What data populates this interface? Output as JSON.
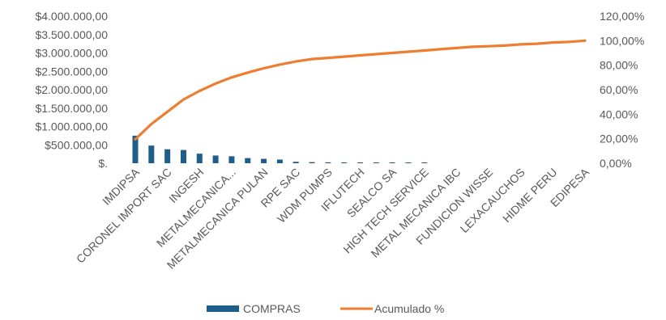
{
  "chart_data": {
    "type": "bar",
    "title": "",
    "xlabel": "",
    "ylabel": "",
    "ylim": [
      0,
      4000000
    ],
    "y2lim": [
      0,
      1.2
    ],
    "y_ticks": [
      "$.",
      "$500.000,00",
      "$1.000.000,00",
      "$1.500.000,00",
      "$2.000.000,00",
      "$2.500.000,00",
      "$3.000.000,00",
      "$3.500.000,00",
      "$4.000.000,00"
    ],
    "y2_ticks": [
      "0,00%",
      "20,00%",
      "40,00%",
      "60,00%",
      "80,00%",
      "100,00%",
      "120,00%"
    ],
    "x_tick_labels": [
      "IMDIPSA",
      "CORONEL IMPORT SAC",
      "INGESH",
      "METALMECANICA...",
      "METALMECANICA PULAN",
      "RPE SAC",
      "WDM PUMPS",
      "IFLUTECH",
      "SEALCO SA",
      "HIGH TECH SERVICE",
      "METAL MECANICA IBC",
      "FUNDICION WISSE",
      "LEXACAUCHOS",
      "HIDME PERU",
      "EDIPESA"
    ],
    "x_tick_every": 2,
    "num_categories": 29,
    "legend_position": "bottom",
    "grid": false,
    "series": [
      {
        "name": "COMPRAS",
        "type": "bar",
        "axis": "left",
        "color": "#1f5d8a",
        "values": [
          750000,
          480000,
          380000,
          360000,
          260000,
          210000,
          190000,
          140000,
          120000,
          100000,
          40000,
          30000,
          25000,
          20000,
          18000,
          15000,
          12000,
          10000,
          8000,
          0,
          0,
          0,
          0,
          0,
          0,
          0,
          0,
          0,
          0
        ]
      },
      {
        "name": "Acumulado %",
        "type": "line",
        "axis": "right",
        "color": "#ed7d31",
        "values": [
          0.195,
          0.32,
          0.42,
          0.52,
          0.59,
          0.65,
          0.7,
          0.74,
          0.775,
          0.805,
          0.83,
          0.85,
          0.86,
          0.87,
          0.88,
          0.89,
          0.9,
          0.91,
          0.92,
          0.93,
          0.94,
          0.95,
          0.955,
          0.96,
          0.97,
          0.975,
          0.985,
          0.99,
          1.0
        ]
      }
    ]
  }
}
